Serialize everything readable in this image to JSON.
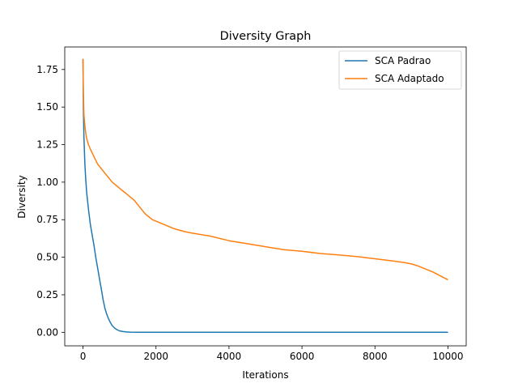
{
  "chart_data": {
    "type": "line",
    "title": "Diversity Graph",
    "xlabel": "Iterations",
    "ylabel": "Diversity",
    "xlim": [
      -500,
      10500
    ],
    "ylim": [
      -0.09,
      1.9
    ],
    "xticks": [
      0,
      2000,
      4000,
      6000,
      8000,
      10000
    ],
    "xtick_labels": [
      "0",
      "2000",
      "4000",
      "6000",
      "8000",
      "10000"
    ],
    "yticks": [
      0.0,
      0.25,
      0.5,
      0.75,
      1.0,
      1.25,
      1.5,
      1.75
    ],
    "ytick_labels": [
      "0.00",
      "0.25",
      "0.50",
      "0.75",
      "1.00",
      "1.25",
      "1.50",
      "1.75"
    ],
    "grid": false,
    "legend_position": "upper right",
    "series": [
      {
        "name": "SCA Padrao",
        "color": "#1f77b4",
        "x": [
          0,
          10,
          25,
          50,
          75,
          100,
          150,
          200,
          250,
          300,
          350,
          400,
          450,
          500,
          550,
          600,
          650,
          700,
          750,
          800,
          850,
          900,
          950,
          1000,
          1100,
          1200,
          1300,
          1500,
          2000,
          3000,
          4000,
          5000,
          6000,
          7000,
          8000,
          9000,
          10000
        ],
        "y": [
          1.82,
          1.5,
          1.3,
          1.13,
          1.02,
          0.93,
          0.82,
          0.72,
          0.65,
          0.58,
          0.5,
          0.43,
          0.36,
          0.29,
          0.22,
          0.16,
          0.12,
          0.09,
          0.065,
          0.045,
          0.032,
          0.022,
          0.015,
          0.01,
          0.005,
          0.002,
          0.001,
          0.0,
          0.0,
          0.0,
          0.0,
          0.0,
          0.0,
          0.0,
          0.0,
          0.0,
          0.0
        ]
      },
      {
        "name": "SCA Adaptado",
        "color": "#ff7f0e",
        "x": [
          0,
          10,
          25,
          50,
          75,
          100,
          150,
          200,
          300,
          400,
          500,
          600,
          700,
          800,
          900,
          1000,
          1100,
          1200,
          1300,
          1400,
          1500,
          1600,
          1700,
          1800,
          1900,
          2000,
          2200,
          2500,
          2800,
          3000,
          3500,
          4000,
          4500,
          5000,
          5500,
          6000,
          6500,
          7000,
          7500,
          8000,
          8500,
          8800,
          9000,
          9200,
          9400,
          9600,
          9800,
          10000
        ],
        "y": [
          1.82,
          1.6,
          1.45,
          1.38,
          1.33,
          1.29,
          1.25,
          1.22,
          1.17,
          1.12,
          1.09,
          1.06,
          1.03,
          1.0,
          0.98,
          0.96,
          0.94,
          0.92,
          0.9,
          0.88,
          0.85,
          0.82,
          0.79,
          0.77,
          0.75,
          0.74,
          0.72,
          0.69,
          0.67,
          0.66,
          0.64,
          0.61,
          0.59,
          0.57,
          0.55,
          0.54,
          0.525,
          0.515,
          0.505,
          0.49,
          0.475,
          0.465,
          0.455,
          0.44,
          0.42,
          0.4,
          0.375,
          0.35
        ]
      }
    ]
  }
}
